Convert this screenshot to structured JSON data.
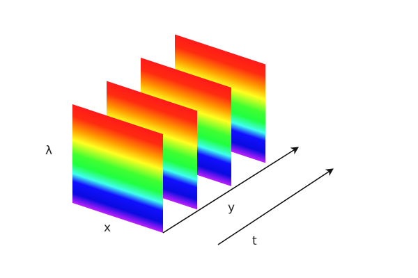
{
  "labels": {
    "lambda": "λ",
    "x": "x",
    "y": "y",
    "t": "t"
  },
  "panels": {
    "count": 4,
    "gradient_colors": [
      "#ff1a1a",
      "#ff2a10",
      "#ff9a00",
      "#ffff20",
      "#40ff30",
      "#20ff40",
      "#40ffee",
      "#1010ff",
      "#0a0ae0",
      "#c020ff"
    ]
  },
  "colors": {
    "arrow": "#111111",
    "label": "#222222"
  }
}
